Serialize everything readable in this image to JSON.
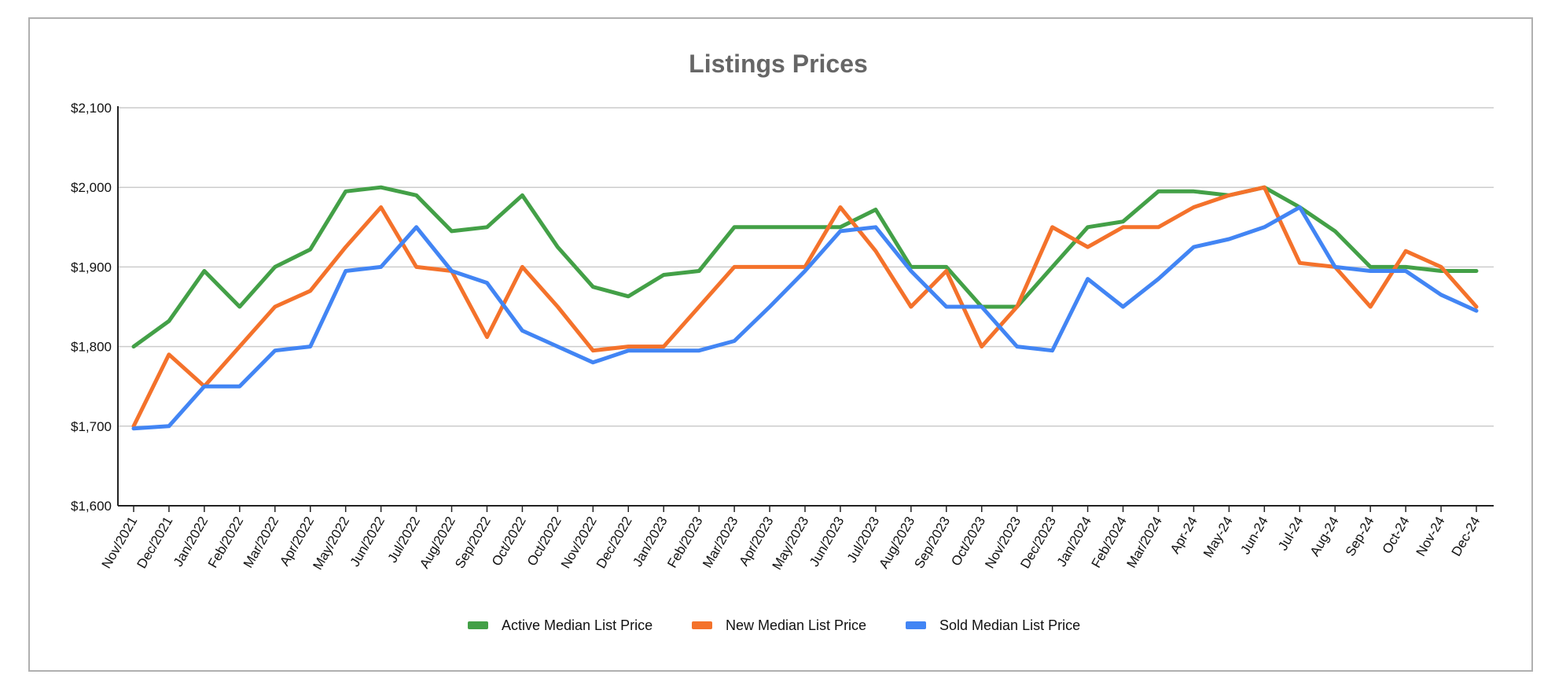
{
  "chart_data": {
    "type": "line",
    "title": "Listings Prices",
    "xlabel": "",
    "ylabel": "",
    "ylim": [
      1600,
      2100
    ],
    "yticks": [
      1600,
      1700,
      1800,
      1900,
      2000,
      2100
    ],
    "ytick_labels": [
      "$1,600",
      "$1,700",
      "$1,800",
      "$1,900",
      "$2,000",
      "$2,100"
    ],
    "grid": true,
    "legend_position": "bottom",
    "categories": [
      "Nov/2021",
      "Dec/2021",
      "Jan/2022",
      "Feb/2022",
      "Mar/2022",
      "Apr/2022",
      "May/2022",
      "Jun/2022",
      "Jul/2022",
      "Aug/2022",
      "Sep/2022",
      "Oct/2022",
      "Oct/2022",
      "Nov/2022",
      "Dec/2022",
      "Jan/2023",
      "Feb/2023",
      "Mar/2023",
      "Apr/2023",
      "May/2023",
      "Jun/2023",
      "Jul/2023",
      "Aug/2023",
      "Sep/2023",
      "Oct/2023",
      "Nov/2023",
      "Dec/2023",
      "Jan/2024",
      "Feb/2024",
      "Mar/2024",
      "Apr-24",
      "May-24",
      "Jun-24",
      "Jul-24",
      "Aug-24",
      "Sep-24",
      "Oct-24",
      "Nov-24",
      "Dec-24"
    ],
    "series": [
      {
        "name": "Active Median List Price",
        "color": "#43a047",
        "values": [
          1800,
          1832,
          1895,
          1850,
          1900,
          1922,
          1995,
          2000,
          1990,
          1945,
          1950,
          1990,
          1925,
          1875,
          1863,
          1890,
          1895,
          1950,
          1950,
          1950,
          1950,
          1972,
          1900,
          1900,
          1850,
          1850,
          1900,
          1950,
          1957,
          1995,
          1995,
          1990,
          2000,
          1975,
          1945,
          1900,
          1900,
          1895,
          1895
        ]
      },
      {
        "name": "New Median List Price",
        "color": "#f4722b",
        "values": [
          1700,
          1790,
          1750,
          1800,
          1850,
          1870,
          1925,
          1975,
          1900,
          1895,
          1812,
          1900,
          1850,
          1795,
          1800,
          1800,
          1850,
          1900,
          1900,
          1900,
          1975,
          1920,
          1850,
          1895,
          1800,
          1850,
          1950,
          1925,
          1950,
          1950,
          1975,
          1990,
          2000,
          1905,
          1900,
          1850,
          1920,
          1900,
          1850
        ]
      },
      {
        "name": "Sold Median List Price",
        "color": "#4285f4",
        "values": [
          1697,
          1700,
          1750,
          1750,
          1795,
          1800,
          1895,
          1900,
          1950,
          1895,
          1880,
          1820,
          1800,
          1780,
          1795,
          1795,
          1795,
          1807,
          1850,
          1895,
          1945,
          1950,
          1895,
          1850,
          1850,
          1800,
          1795,
          1885,
          1850,
          1885,
          1925,
          1935,
          1950,
          1975,
          1900,
          1895,
          1895,
          1865,
          1845
        ]
      }
    ]
  }
}
